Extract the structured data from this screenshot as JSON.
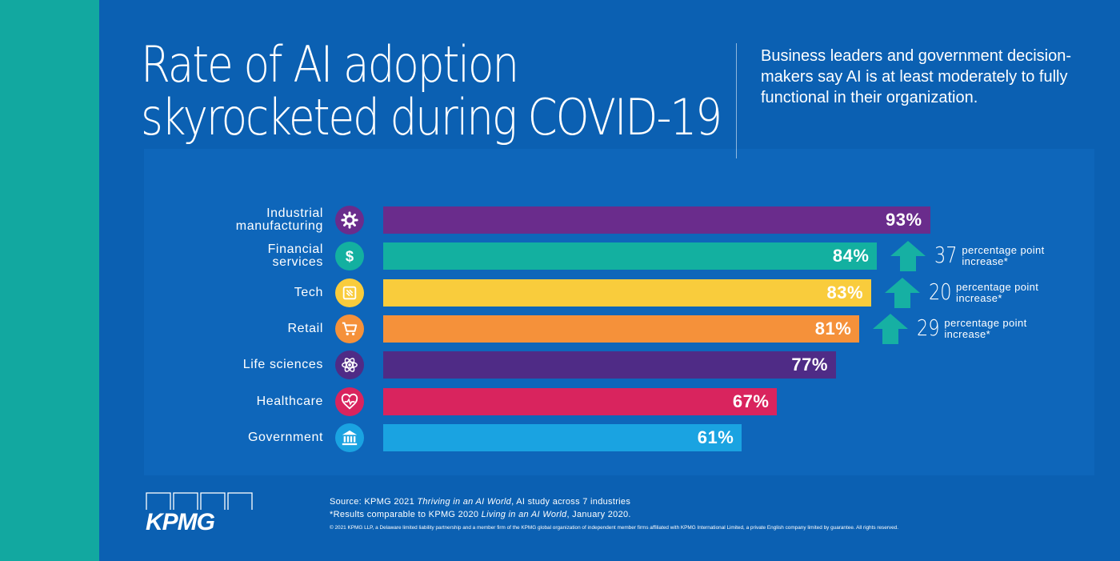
{
  "title_lines": [
    "Rate of AI adoption",
    "skyrocketed during COVID-19"
  ],
  "subtitle": "Business leaders and government decision-makers say AI is at least moderately to fully functional in their organization.",
  "chart_data": {
    "type": "bar",
    "orientation": "horizontal",
    "unit": "%",
    "categories": [
      "Industrial manufacturing",
      "Financial services",
      "Tech",
      "Retail",
      "Life sciences",
      "Healthcare",
      "Government"
    ],
    "values": [
      93,
      84,
      83,
      81,
      77,
      67,
      61
    ],
    "value_labels": [
      "93%",
      "84%",
      "83%",
      "81%",
      "77%",
      "67%",
      "61%"
    ],
    "category_lines": [
      [
        "Industrial",
        "manufacturing"
      ],
      [
        "Financial",
        "services"
      ],
      [
        "Tech"
      ],
      [
        "Retail"
      ],
      [
        "Life sciences"
      ],
      [
        "Healthcare"
      ],
      [
        "Government"
      ]
    ],
    "colors": [
      "#6a2c8c",
      "#13b0a0",
      "#f9cc3c",
      "#f5913a",
      "#4f2b86",
      "#d9245e",
      "#1aa3e1"
    ],
    "icon_colors": [
      "#6a2c8c",
      "#13b0a0",
      "#f9cc3c",
      "#f5913a",
      "#4f2b86",
      "#d9245e",
      "#1aa3e1"
    ],
    "icons": [
      "gear-icon",
      "dollar-icon",
      "chip-icon",
      "cart-icon",
      "atom-icon",
      "heart-pulse-icon",
      "government-building-icon"
    ],
    "increases": [
      {
        "category": "Financial services",
        "points": "37",
        "text_line1": "percentage point",
        "text_line2": "increase*"
      },
      {
        "category": "Tech",
        "points": "20",
        "text_line1": "percentage point",
        "text_line2": "increase*"
      },
      {
        "category": "Retail",
        "points": "29",
        "text_line1": "percentage point",
        "text_line2": "increase*"
      }
    ],
    "arrow_color": "#16b0a3"
  },
  "footer": {
    "logo_text": "KPMG",
    "source_prefix": "Source: KPMG 2021 ",
    "source_title": "Thriving in an AI World",
    "source_suffix": ", AI study across 7 industries",
    "note_prefix": "*Results comparable to KPMG 2020 ",
    "note_title": "Living in an AI World",
    "note_suffix": ", January 2020.",
    "copyright": "© 2021 KPMG LLP, a Delaware limited liability partnership and a member firm of the KPMG global organization of independent member firms affiliated with KPMG International Limited, a private English company limited by guarantee. All rights reserved."
  },
  "colors": {
    "background": "#0b60b2",
    "panel": "#0e66ba",
    "teal_stripe": "#12a8a0"
  }
}
